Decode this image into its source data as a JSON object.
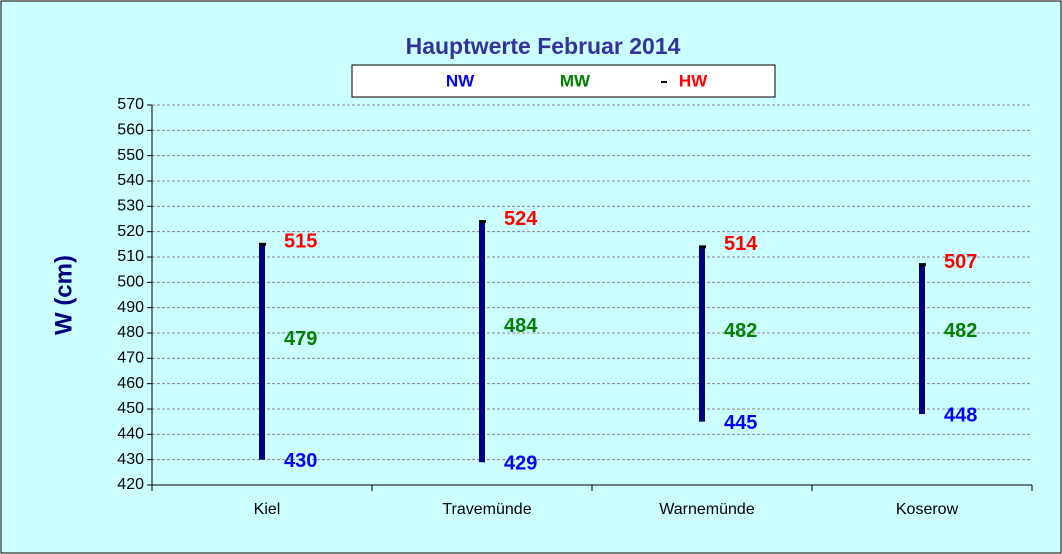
{
  "chart_data": {
    "type": "hilo",
    "title": "Hauptwerte Februar 2014",
    "y_label": "W (cm)",
    "categories": [
      "Kiel",
      "Travemünde",
      "Warnemünde",
      "Koserow"
    ],
    "series": [
      {
        "name": "NW",
        "color": "#0000ff",
        "values": [
          430,
          429,
          445,
          448
        ]
      },
      {
        "name": "MW",
        "color": "#008000",
        "values": [
          479,
          484,
          482,
          482
        ]
      },
      {
        "name": "HW",
        "color": "#ff0000",
        "values": [
          515,
          524,
          514,
          507
        ]
      }
    ],
    "bar_color": "#000080",
    "ylim": [
      420,
      570
    ],
    "yticks": [
      420,
      430,
      440,
      450,
      460,
      470,
      480,
      490,
      500,
      510,
      520,
      530,
      540,
      550,
      560,
      570
    ],
    "grid": true
  }
}
